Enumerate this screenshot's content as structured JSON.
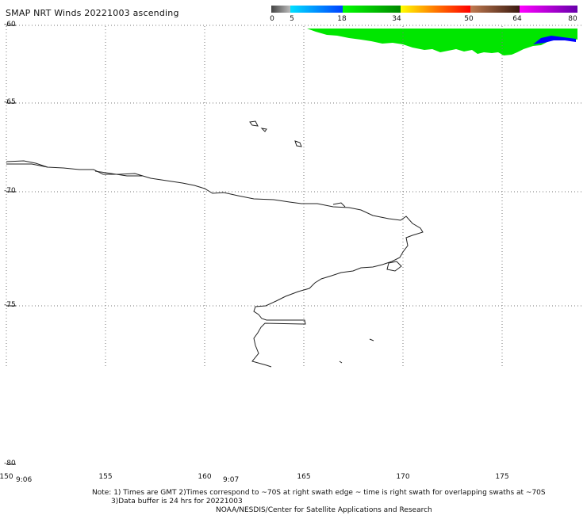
{
  "title": "SMAP NRT Winds 20221003 ascending",
  "colorbar": {
    "tick_labels": [
      "0",
      "5",
      "18",
      "34",
      "50",
      "64",
      "80"
    ],
    "segments": [
      {
        "from": 0,
        "to": 5,
        "color": "#555555"
      },
      {
        "from": 5,
        "to": 18,
        "color": "#00a8ff"
      },
      {
        "from": 18,
        "to": 34,
        "color": "#00cc00"
      },
      {
        "from": 34,
        "to": 50,
        "color": "#ff6600"
      },
      {
        "from": 50,
        "to": 64,
        "color": "#a0522d"
      },
      {
        "from": 64,
        "to": 80,
        "color": "#cc00cc"
      }
    ]
  },
  "map": {
    "lat_labels": [
      "-60",
      "-65",
      "-70",
      "-75",
      "-80"
    ],
    "lon_labels": [
      "150",
      "155",
      "160",
      "165",
      "170",
      "175"
    ],
    "time_labels": [
      "9:06",
      "9:07"
    ],
    "swath_colors": {
      "wind": "#00e600",
      "high_wind": "#0000ff"
    }
  },
  "notes": {
    "line1": "Note: 1) Times are GMT 2)Times correspond to ~70S at right swath edge ~ time is right swath for overlapping swaths at ~70S",
    "line2": "3)Data buffer is 24 hrs for 20221003",
    "line3": "NOAA/NESDIS/Center for Satellite Applications and Research"
  }
}
